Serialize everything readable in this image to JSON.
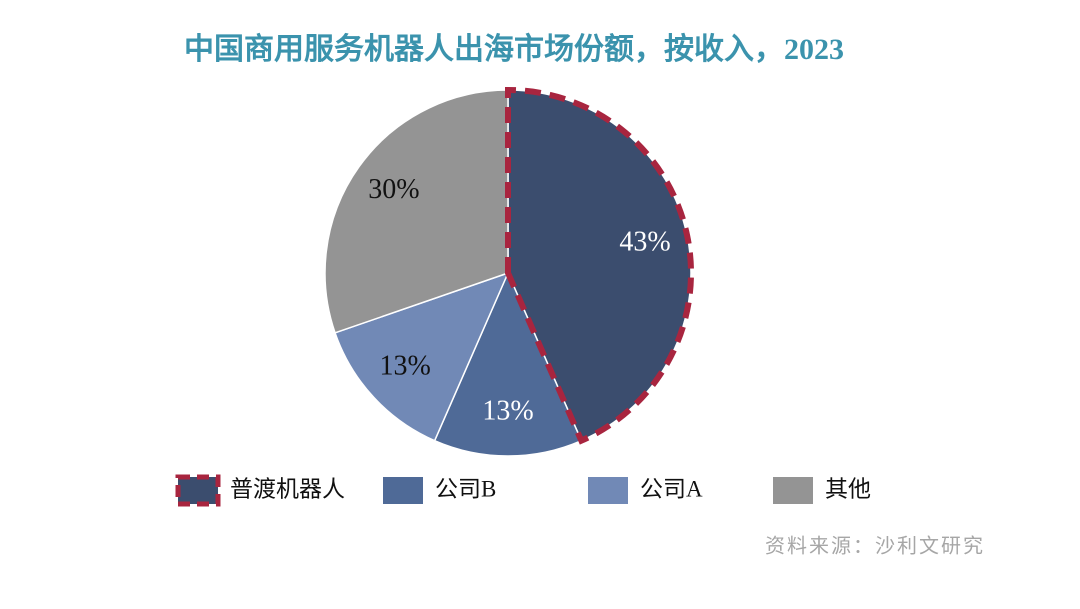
{
  "chart_data": {
    "type": "pie",
    "title": "中国商用服务机器人出海市场份额，按收入，2023",
    "categories": [
      "普渡机器人",
      "公司B",
      "公司A",
      "其他"
    ],
    "values": [
      43,
      13,
      13,
      30
    ],
    "value_labels": [
      "43%",
      "13%",
      "13%",
      "30%"
    ],
    "colors": [
      "#3b4d6e",
      "#4f6a97",
      "#7189b6",
      "#949494"
    ],
    "highlight": {
      "index": 0,
      "color": "#a8253f"
    },
    "source": "资料来源：沙利文研究"
  }
}
